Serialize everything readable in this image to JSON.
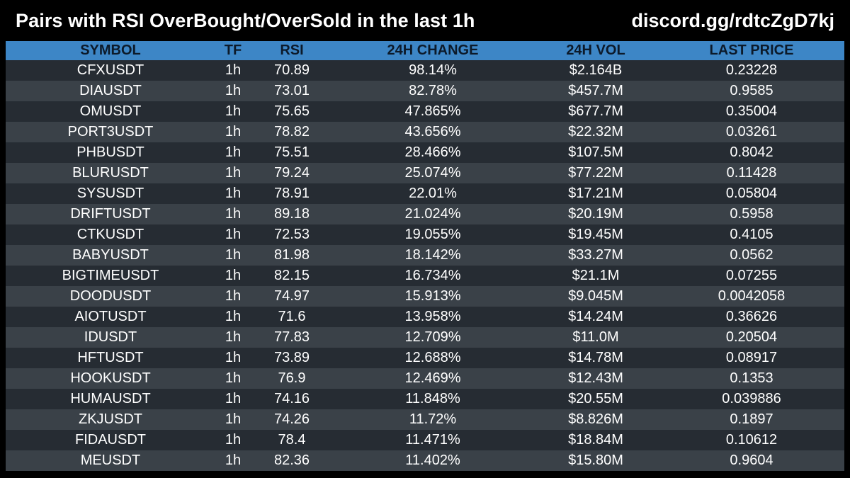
{
  "header": {
    "title": "Pairs with RSI OverBought/OverSold in the last 1h",
    "invite": "discord.gg/rdtcZgD7kj"
  },
  "colors": {
    "background": "#000000",
    "header_row": "#3d86c6",
    "row_even": "#262c33",
    "row_odd": "#3a4148",
    "text": "#ffffff",
    "header_text": "#0c1a2a"
  },
  "table": {
    "columns": [
      "SYMBOL",
      "TF",
      "RSI",
      "24H CHANGE",
      "24H VOL",
      "LAST PRICE"
    ],
    "rows": [
      [
        "CFXUSDT",
        "1h",
        "70.89",
        "98.14%",
        "$2.164B",
        "0.23228"
      ],
      [
        "DIAUSDT",
        "1h",
        "73.01",
        "82.78%",
        "$457.7M",
        "0.9585"
      ],
      [
        "OMUSDT",
        "1h",
        "75.65",
        "47.865%",
        "$677.7M",
        "0.35004"
      ],
      [
        "PORT3USDT",
        "1h",
        "78.82",
        "43.656%",
        "$22.32M",
        "0.03261"
      ],
      [
        "PHBUSDT",
        "1h",
        "75.51",
        "28.466%",
        "$107.5M",
        "0.8042"
      ],
      [
        "BLURUSDT",
        "1h",
        "79.24",
        "25.074%",
        "$77.22M",
        "0.11428"
      ],
      [
        "SYSUSDT",
        "1h",
        "78.91",
        "22.01%",
        "$17.21M",
        "0.05804"
      ],
      [
        "DRIFTUSDT",
        "1h",
        "89.18",
        "21.024%",
        "$20.19M",
        "0.5958"
      ],
      [
        "CTKUSDT",
        "1h",
        "72.53",
        "19.055%",
        "$19.45M",
        "0.4105"
      ],
      [
        "BABYUSDT",
        "1h",
        "81.98",
        "18.142%",
        "$33.27M",
        "0.0562"
      ],
      [
        "BIGTIMEUSDT",
        "1h",
        "82.15",
        "16.734%",
        "$21.1M",
        "0.07255"
      ],
      [
        "DOODUSDT",
        "1h",
        "74.97",
        "15.913%",
        "$9.045M",
        "0.0042058"
      ],
      [
        "AIOTUSDT",
        "1h",
        "71.6",
        "13.958%",
        "$14.24M",
        "0.36626"
      ],
      [
        "IDUSDT",
        "1h",
        "77.83",
        "12.709%",
        "$11.0M",
        "0.20504"
      ],
      [
        "HFTUSDT",
        "1h",
        "73.89",
        "12.688%",
        "$14.78M",
        "0.08917"
      ],
      [
        "HOOKUSDT",
        "1h",
        "76.9",
        "12.469%",
        "$12.43M",
        "0.1353"
      ],
      [
        "HUMAUSDT",
        "1h",
        "74.16",
        "11.848%",
        "$20.55M",
        "0.039886"
      ],
      [
        "ZKJUSDT",
        "1h",
        "74.26",
        "11.72%",
        "$8.826M",
        "0.1897"
      ],
      [
        "FIDAUSDT",
        "1h",
        "78.4",
        "11.471%",
        "$18.84M",
        "0.10612"
      ],
      [
        "MEUSDT",
        "1h",
        "82.36",
        "11.402%",
        "$15.80M",
        "0.9604"
      ]
    ]
  }
}
